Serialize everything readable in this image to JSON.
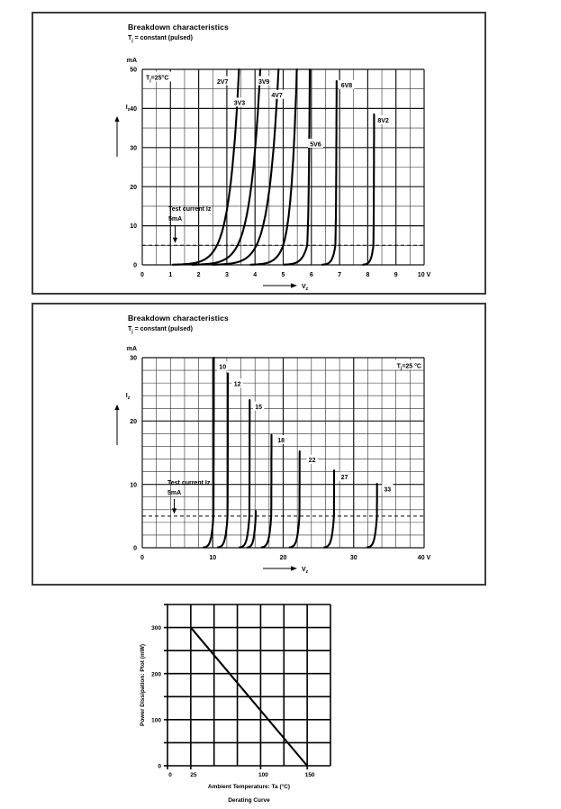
{
  "chart_data": [
    {
      "id": "breakdown-low-voltage",
      "type": "line",
      "title": "Breakdown characteristics",
      "subtitle_pre": "T",
      "subtitle_sub": "j",
      "subtitle_post": " = constant (pulsed)",
      "temp_pre": "T",
      "temp_sub": "j",
      "temp_post": "=25°C",
      "temp_corner": "left",
      "ylabel_pre": "I",
      "ylabel_sub": "z",
      "xlabel_pre": "V",
      "xlabel_sub": "z",
      "y_unit": "mA",
      "xlim": [
        0,
        10
      ],
      "ylim": [
        0,
        50
      ],
      "x_major": 1,
      "x_minor": 0.5,
      "y_major": 10,
      "y_minor": 5,
      "x_ticks": [
        {
          "v": 0,
          "label": "0"
        },
        {
          "v": 1,
          "label": "1"
        },
        {
          "v": 2,
          "label": "2"
        },
        {
          "v": 3,
          "label": "3"
        },
        {
          "v": 4,
          "label": "4"
        },
        {
          "v": 5,
          "label": "5"
        },
        {
          "v": 6,
          "label": "6"
        },
        {
          "v": 7,
          "label": "7"
        },
        {
          "v": 8,
          "label": "8"
        },
        {
          "v": 9,
          "label": "9"
        },
        {
          "v": 10,
          "label": "10 V"
        }
      ],
      "y_ticks": [
        {
          "v": 0,
          "label": "0"
        },
        {
          "v": 10,
          "label": "10"
        },
        {
          "v": 20,
          "label": "20"
        },
        {
          "v": 30,
          "label": "30"
        },
        {
          "v": 40,
          "label": "40"
        },
        {
          "v": 50,
          "label": "50"
        }
      ],
      "test_current": {
        "line1": "Test current Iz",
        "line2": "5mA",
        "value": 5
      },
      "series": [
        {
          "name": "2V7",
          "vz": 2.65,
          "n_lo": 0.34,
          "n_hi": 0.34,
          "i_top": 50,
          "label_x": 2.85,
          "label_y": 47
        },
        {
          "name": "3V3",
          "vz": 3.38,
          "n_lo": 0.35,
          "n_hi": 0.35,
          "i_top": 50,
          "label_x": 3.45,
          "label_y": 41.5
        },
        {
          "name": "3V9",
          "vz": 4.05,
          "n_lo": 0.34,
          "n_hi": 0.34,
          "i_top": 50,
          "label_x": 4.32,
          "label_y": 47
        },
        {
          "name": "4V7",
          "vz": 5.0,
          "n_lo": 0.25,
          "n_hi": 0.21,
          "i_top": 50,
          "label_x": 4.78,
          "label_y": 43.5
        },
        {
          "name": "5V6",
          "vz": 5.85,
          "n_lo": 0.18,
          "n_hi": 0.04,
          "i_top": 50,
          "label_x": 6.15,
          "label_y": 31
        },
        {
          "name": "6V8",
          "vz": 6.85,
          "n_lo": 0.1,
          "n_hi": 0.02,
          "i_top": 47,
          "label_x": 7.25,
          "label_y": 46
        },
        {
          "name": "8V2",
          "vz": 8.2,
          "n_lo": 0.08,
          "n_hi": 0.012,
          "i_top": 38.5,
          "label_x": 8.55,
          "label_y": 37
        }
      ]
    },
    {
      "id": "breakdown-high-voltage",
      "type": "line",
      "title": "Breakdown characteristics",
      "subtitle_pre": "T",
      "subtitle_sub": "j",
      "subtitle_post": " = constant (pulsed)",
      "temp_pre": "T",
      "temp_sub": "j",
      "temp_post": "=25 °C",
      "temp_corner": "right",
      "ylabel_pre": "I",
      "ylabel_sub": "z",
      "xlabel_pre": "V",
      "xlabel_sub": "z",
      "y_unit": "mA",
      "xlim": [
        0,
        40
      ],
      "ylim": [
        0,
        30
      ],
      "x_major": 10,
      "x_minor": 2,
      "y_major": 10,
      "y_minor": 2,
      "x_ticks": [
        {
          "v": 0,
          "label": "0"
        },
        {
          "v": 10,
          "label": "10"
        },
        {
          "v": 20,
          "label": "20"
        },
        {
          "v": 30,
          "label": "30"
        },
        {
          "v": 40,
          "label": "40 V"
        }
      ],
      "y_ticks": [
        {
          "v": 0,
          "label": "0"
        },
        {
          "v": 10,
          "label": "10"
        },
        {
          "v": 20,
          "label": "20"
        },
        {
          "v": 30,
          "label": "30"
        }
      ],
      "test_current": {
        "line1": "Test current Iz",
        "line2": "5mA",
        "value": 5
      },
      "series": [
        {
          "name": "10",
          "vz": 10.1,
          "n_lo": 0.3,
          "n_hi": 0.03,
          "i_top": 30,
          "label_x": 11.4,
          "label_y": 28.6
        },
        {
          "name": "12",
          "vz": 12.1,
          "n_lo": 0.3,
          "n_hi": 0.03,
          "i_top": 27.5,
          "label_x": 13.5,
          "label_y": 25.9
        },
        {
          "name": "15",
          "vz": 15.2,
          "n_lo": 0.3,
          "n_hi": 0.03,
          "i_top": 23.3,
          "label_x": 16.5,
          "label_y": 22.3
        },
        {
          "name": "",
          "vz": 16.1,
          "n_lo": 0.25,
          "n_hi": 0.03,
          "i_top": 5.8,
          "label_x": 0,
          "label_y": 0
        },
        {
          "name": "18",
          "vz": 18.3,
          "n_lo": 0.3,
          "n_hi": 0.03,
          "i_top": 17.8,
          "label_x": 19.7,
          "label_y": 17.0
        },
        {
          "name": "22",
          "vz": 22.3,
          "n_lo": 0.3,
          "n_hi": 0.03,
          "i_top": 15.2,
          "label_x": 24.1,
          "label_y": 13.9
        },
        {
          "name": "27",
          "vz": 27.2,
          "n_lo": 0.3,
          "n_hi": 0.03,
          "i_top": 12.2,
          "label_x": 28.7,
          "label_y": 11.2
        },
        {
          "name": "33",
          "vz": 33.3,
          "n_lo": 0.3,
          "n_hi": 0.03,
          "i_top": 10.1,
          "label_x": 34.8,
          "label_y": 9.3
        }
      ]
    },
    {
      "id": "derating",
      "type": "line",
      "caption": "Derating Curve",
      "xlabel": "Ambient Temperature: Ta (°C)",
      "ylabel": "Power Dissipation: Ptot (mW)",
      "xlim": [
        0,
        175
      ],
      "ylim": [
        0,
        350
      ],
      "x_grid": 25,
      "y_grid": 50,
      "x_ticks": [
        {
          "v": 0,
          "label": "0"
        },
        {
          "v": 25,
          "label": "25"
        },
        {
          "v": 100,
          "label": "100"
        },
        {
          "v": 150,
          "label": "150"
        }
      ],
      "y_ticks": [
        {
          "v": 0,
          "label": "0"
        },
        {
          "v": 100,
          "label": "100"
        },
        {
          "v": 200,
          "label": "200"
        },
        {
          "v": 300,
          "label": "300"
        }
      ],
      "line_points": [
        [
          25,
          300
        ],
        [
          150,
          0
        ]
      ]
    }
  ]
}
